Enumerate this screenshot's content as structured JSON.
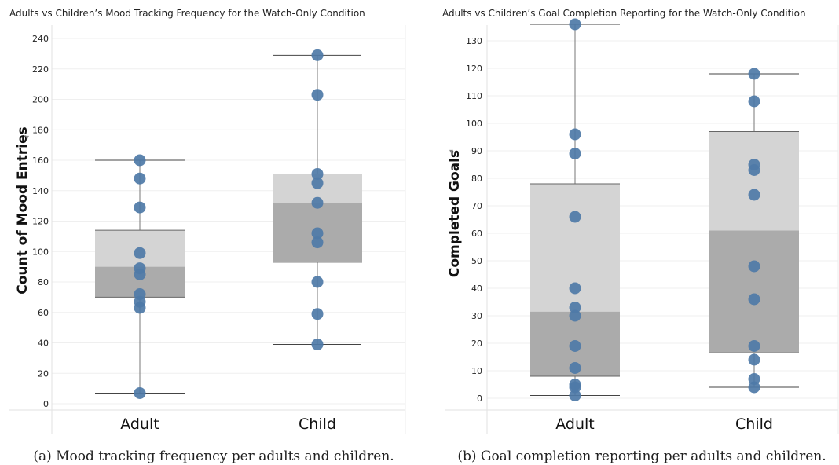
{
  "chart_data": [
    {
      "type": "box",
      "title": "Adults vs Children’s Mood Tracking Frequency for the Watch-Only Condition",
      "ylabel": "Count of Mood Entries",
      "ylabel_icon": "sort-icon",
      "caption": "(a) Mood tracking frequency per adults and children.",
      "ylim": [
        0,
        245
      ],
      "yticks": [
        0,
        20,
        40,
        60,
        80,
        100,
        120,
        140,
        160,
        180,
        200,
        220,
        240
      ],
      "categories": [
        "Adult",
        "Child"
      ],
      "boxes": [
        {
          "category": "Adult",
          "whisker_low": 7,
          "q1": 70,
          "median": 90,
          "q3": 114,
          "whisker_high": 160,
          "points": [
            7,
            63,
            67,
            72,
            85,
            89,
            99,
            129,
            148,
            160
          ]
        },
        {
          "category": "Child",
          "whisker_low": 39,
          "q1": 93,
          "median": 132,
          "q3": 151,
          "whisker_high": 229,
          "points": [
            39,
            59,
            80,
            106,
            112,
            132,
            145,
            151,
            203,
            229
          ]
        }
      ],
      "colors": {
        "point": "#4e79a7",
        "box_upper": "#d4d4d4",
        "box_lower": "#ababab",
        "whisker": "#555555"
      }
    },
    {
      "type": "box",
      "title": "Adults vs Children’s Goal Completion Reporting for the Watch-Only Condition",
      "ylabel": "Completed Goals",
      "ylabel_icon": "sort-icon",
      "caption": "(b) Goal completion reporting per adults and children.",
      "ylim": [
        0,
        136
      ],
      "yticks": [
        0,
        10,
        20,
        30,
        40,
        50,
        60,
        70,
        80,
        90,
        100,
        110,
        120,
        130
      ],
      "categories": [
        "Adult",
        "Child"
      ],
      "boxes": [
        {
          "category": "Adult",
          "whisker_low": 1,
          "q1": 8,
          "median": 31.5,
          "q3": 78,
          "whisker_high": 136,
          "points": [
            1,
            4,
            5,
            11,
            19,
            30,
            33,
            40,
            66,
            89,
            96,
            136
          ]
        },
        {
          "category": "Child",
          "whisker_low": 4,
          "q1": 16.5,
          "median": 61,
          "q3": 97,
          "whisker_high": 118,
          "points": [
            4,
            7,
            14,
            19,
            36,
            48,
            74,
            83,
            85,
            108,
            118
          ]
        }
      ],
      "colors": {
        "point": "#4e79a7",
        "box_upper": "#d4d4d4",
        "box_lower": "#ababab",
        "whisker": "#555555"
      }
    }
  ]
}
